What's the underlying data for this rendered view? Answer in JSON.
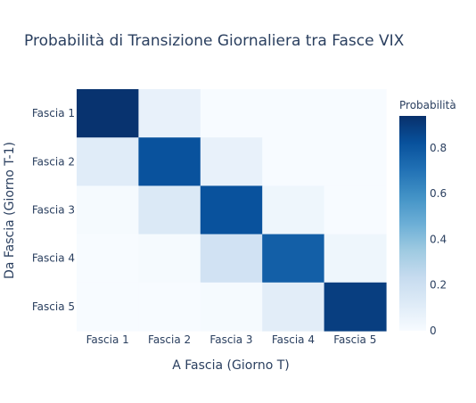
{
  "chart_data": {
    "type": "heatmap",
    "title": "Probabilità di Transizione Giornaliera tra Fasce VIX",
    "xlabel": "A Fascia (Giorno T)",
    "ylabel": "Da Fascia (Giorno T-1)",
    "x_categories": [
      "Fascia 1",
      "Fascia 2",
      "Fascia 3",
      "Fascia 4",
      "Fascia 5"
    ],
    "y_categories": [
      "Fascia 1",
      "Fascia 2",
      "Fascia 3",
      "Fascia 4",
      "Fascia 5"
    ],
    "z": [
      [
        0.93,
        0.07,
        0.0,
        0.0,
        0.0
      ],
      [
        0.11,
        0.82,
        0.07,
        0.0,
        0.0
      ],
      [
        0.01,
        0.13,
        0.82,
        0.04,
        0.0
      ],
      [
        0.0,
        0.01,
        0.18,
        0.77,
        0.04
      ],
      [
        0.0,
        0.0,
        0.01,
        0.1,
        0.89
      ]
    ],
    "colorbar": {
      "title": "Probabilità",
      "ticks": [
        0,
        0.2,
        0.4,
        0.6,
        0.8
      ],
      "tick_labels": [
        "0",
        "0.2",
        "0.4",
        "0.6",
        "0.8"
      ],
      "range": [
        0,
        0.94
      ],
      "colorscale": "Blues"
    }
  }
}
